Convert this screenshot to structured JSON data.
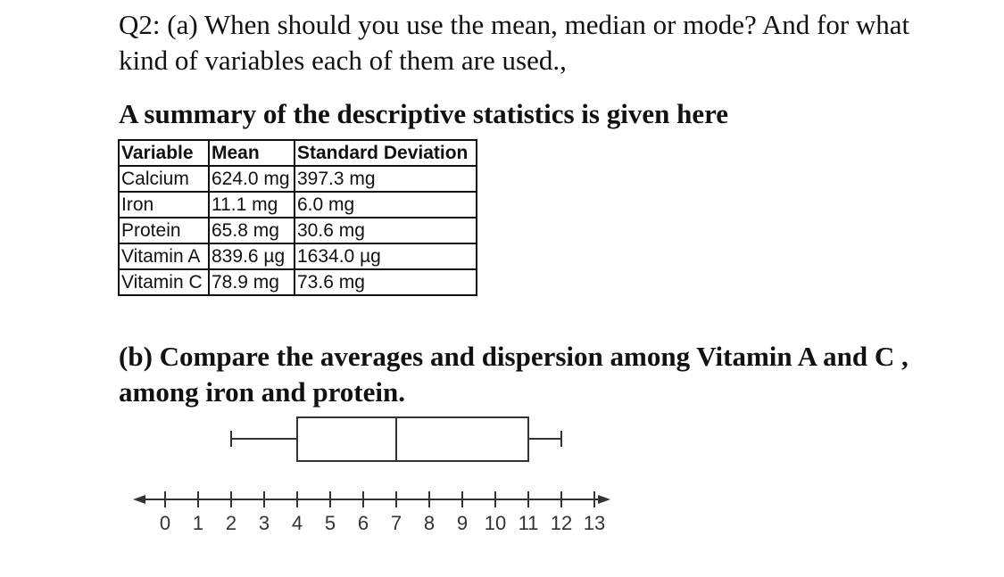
{
  "question": {
    "text": "Q2: (a) When should you use the mean, median or mode? And for what kind of variables each of them are used.,"
  },
  "summary_heading": "A summary of the descriptive statistics is given here",
  "table": {
    "headers": [
      "Variable",
      "Mean",
      "Standard Deviation"
    ],
    "rows": [
      [
        "Calcium",
        "624.0 mg",
        "397.3 mg"
      ],
      [
        "Iron",
        "11.1 mg",
        "6.0 mg"
      ],
      [
        "Protein",
        "65.8 mg",
        "30.6 mg"
      ],
      [
        "Vitamin A",
        "839.6 µg",
        "1634.0 µg"
      ],
      [
        "Vitamin C",
        "78.9 mg",
        "73.6 mg"
      ]
    ]
  },
  "part_b": "(b) Compare the averages and dispersion  among Vitamin A and C , among iron and protein.",
  "chart_data": {
    "type": "boxplot",
    "min": 2,
    "q1": 4,
    "median": 7,
    "q3": 11,
    "max": 12,
    "axis": {
      "range": [
        0,
        13
      ],
      "tick_labels": [
        "0",
        "1",
        "2",
        "3",
        "4",
        "5",
        "6",
        "7",
        "8",
        "9",
        "10",
        "11",
        "12",
        "13"
      ]
    }
  }
}
